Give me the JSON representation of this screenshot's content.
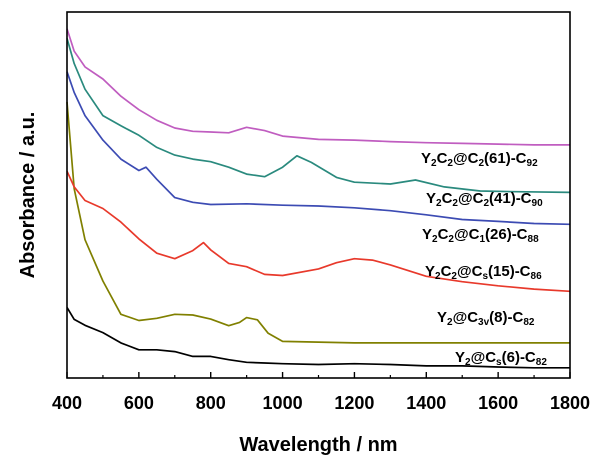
{
  "chart_data": {
    "type": "line",
    "xlabel": "Wavelength / nm",
    "ylabel": "Absorbance / a.u.",
    "xlim": [
      400,
      1800
    ],
    "ylim": [
      0,
      10
    ],
    "x_ticks": [
      "400",
      "600",
      "800",
      "1000",
      "1200",
      "1400",
      "1600",
      "1800"
    ],
    "y_ticks_labeled": false,
    "grid": false,
    "legend": "labels placed at right end of each curve",
    "series": [
      {
        "name": "Y2@Cs(6)-C82",
        "label_parts": [
          [
            "Y",
            ""
          ],
          [
            "2",
            "sub"
          ],
          [
            "@C",
            ""
          ],
          [
            "s",
            "sub"
          ],
          [
            "(6)-C",
            ""
          ],
          [
            "82",
            "sub"
          ]
        ],
        "color": "#000000",
        "points": [
          [
            400,
            1.93
          ],
          [
            420,
            1.6
          ],
          [
            450,
            1.44
          ],
          [
            500,
            1.24
          ],
          [
            550,
            0.96
          ],
          [
            600,
            0.77
          ],
          [
            650,
            0.77
          ],
          [
            700,
            0.72
          ],
          [
            750,
            0.59
          ],
          [
            800,
            0.59
          ],
          [
            850,
            0.5
          ],
          [
            900,
            0.43
          ],
          [
            950,
            0.41
          ],
          [
            1000,
            0.39
          ],
          [
            1100,
            0.37
          ],
          [
            1200,
            0.39
          ],
          [
            1300,
            0.37
          ],
          [
            1400,
            0.33
          ],
          [
            1500,
            0.33
          ],
          [
            1600,
            0.3
          ],
          [
            1700,
            0.28
          ],
          [
            1800,
            0.28
          ]
        ]
      },
      {
        "name": "Y2@C3v(8)-C82",
        "label_parts": [
          [
            "Y",
            ""
          ],
          [
            "2",
            "sub"
          ],
          [
            "@C",
            ""
          ],
          [
            "3v",
            "sub"
          ],
          [
            "(8)-C",
            ""
          ],
          [
            "82",
            "sub"
          ]
        ],
        "color": "#808000",
        "points": [
          [
            400,
            7.54
          ],
          [
            420,
            5.17
          ],
          [
            450,
            3.78
          ],
          [
            500,
            2.65
          ],
          [
            550,
            1.74
          ],
          [
            600,
            1.57
          ],
          [
            650,
            1.63
          ],
          [
            700,
            1.74
          ],
          [
            750,
            1.72
          ],
          [
            800,
            1.61
          ],
          [
            850,
            1.43
          ],
          [
            880,
            1.52
          ],
          [
            900,
            1.65
          ],
          [
            930,
            1.59
          ],
          [
            960,
            1.22
          ],
          [
            1000,
            1.0
          ],
          [
            1100,
            0.98
          ],
          [
            1200,
            0.96
          ],
          [
            1400,
            0.96
          ],
          [
            1600,
            0.96
          ],
          [
            1800,
            0.96
          ]
        ]
      },
      {
        "name": "Y2C2@Cs(15)-C86",
        "label_parts": [
          [
            "Y",
            ""
          ],
          [
            "2",
            "sub"
          ],
          [
            "C",
            ""
          ],
          [
            "2",
            "sub"
          ],
          [
            "@C",
            ""
          ],
          [
            "s",
            "sub"
          ],
          [
            "(15)-C",
            ""
          ],
          [
            "86",
            "sub"
          ]
        ],
        "color": "#e8392b",
        "points": [
          [
            400,
            5.65
          ],
          [
            420,
            5.22
          ],
          [
            450,
            4.85
          ],
          [
            500,
            4.63
          ],
          [
            550,
            4.26
          ],
          [
            600,
            3.8
          ],
          [
            650,
            3.41
          ],
          [
            700,
            3.26
          ],
          [
            750,
            3.48
          ],
          [
            780,
            3.7
          ],
          [
            800,
            3.5
          ],
          [
            850,
            3.13
          ],
          [
            900,
            3.04
          ],
          [
            950,
            2.83
          ],
          [
            1000,
            2.8
          ],
          [
            1100,
            2.98
          ],
          [
            1150,
            3.15
          ],
          [
            1200,
            3.26
          ],
          [
            1250,
            3.22
          ],
          [
            1300,
            3.09
          ],
          [
            1400,
            2.78
          ],
          [
            1500,
            2.63
          ],
          [
            1600,
            2.52
          ],
          [
            1700,
            2.43
          ],
          [
            1800,
            2.37
          ]
        ]
      },
      {
        "name": "Y2C2@C1(26)-C88",
        "label_parts": [
          [
            "Y",
            ""
          ],
          [
            "2",
            "sub"
          ],
          [
            "C",
            ""
          ],
          [
            "2",
            "sub"
          ],
          [
            "@C",
            ""
          ],
          [
            "1",
            "sub"
          ],
          [
            "(26)-C",
            ""
          ],
          [
            "88",
            "sub"
          ]
        ],
        "color": "#3c4bb3",
        "points": [
          [
            400,
            8.37
          ],
          [
            420,
            7.8
          ],
          [
            450,
            7.17
          ],
          [
            500,
            6.5
          ],
          [
            550,
            5.98
          ],
          [
            600,
            5.67
          ],
          [
            620,
            5.76
          ],
          [
            650,
            5.43
          ],
          [
            700,
            4.93
          ],
          [
            750,
            4.8
          ],
          [
            800,
            4.74
          ],
          [
            900,
            4.76
          ],
          [
            1000,
            4.72
          ],
          [
            1100,
            4.7
          ],
          [
            1200,
            4.65
          ],
          [
            1300,
            4.57
          ],
          [
            1400,
            4.46
          ],
          [
            1500,
            4.33
          ],
          [
            1600,
            4.28
          ],
          [
            1700,
            4.22
          ],
          [
            1800,
            4.2
          ]
        ]
      },
      {
        "name": "Y2C2@C2(41)-C90",
        "label_parts": [
          [
            "Y",
            ""
          ],
          [
            "2",
            "sub"
          ],
          [
            "C",
            ""
          ],
          [
            "2",
            "sub"
          ],
          [
            "@C",
            ""
          ],
          [
            "2",
            "sub"
          ],
          [
            "(41)-C",
            ""
          ],
          [
            "90",
            "sub"
          ]
        ],
        "color": "#2a8a7e",
        "points": [
          [
            400,
            9.28
          ],
          [
            420,
            8.59
          ],
          [
            450,
            7.89
          ],
          [
            500,
            7.17
          ],
          [
            550,
            6.89
          ],
          [
            600,
            6.63
          ],
          [
            650,
            6.3
          ],
          [
            700,
            6.09
          ],
          [
            750,
            5.98
          ],
          [
            800,
            5.91
          ],
          [
            850,
            5.76
          ],
          [
            900,
            5.57
          ],
          [
            950,
            5.5
          ],
          [
            1000,
            5.76
          ],
          [
            1040,
            6.07
          ],
          [
            1080,
            5.89
          ],
          [
            1150,
            5.48
          ],
          [
            1200,
            5.35
          ],
          [
            1300,
            5.3
          ],
          [
            1370,
            5.41
          ],
          [
            1450,
            5.22
          ],
          [
            1550,
            5.11
          ],
          [
            1650,
            5.09
          ],
          [
            1800,
            5.07
          ]
        ]
      },
      {
        "name": "Y2C2@C2(61)-C92",
        "label_parts": [
          [
            "Y",
            ""
          ],
          [
            "2",
            "sub"
          ],
          [
            "C",
            ""
          ],
          [
            "2",
            "sub"
          ],
          [
            "@C",
            ""
          ],
          [
            "2",
            "sub"
          ],
          [
            "(61)-C",
            ""
          ],
          [
            "92",
            "sub"
          ]
        ],
        "color": "#c05dc0",
        "points": [
          [
            400,
            9.54
          ],
          [
            420,
            8.93
          ],
          [
            450,
            8.5
          ],
          [
            500,
            8.17
          ],
          [
            550,
            7.7
          ],
          [
            600,
            7.33
          ],
          [
            650,
            7.04
          ],
          [
            700,
            6.83
          ],
          [
            750,
            6.74
          ],
          [
            800,
            6.72
          ],
          [
            850,
            6.7
          ],
          [
            900,
            6.85
          ],
          [
            950,
            6.76
          ],
          [
            1000,
            6.61
          ],
          [
            1100,
            6.52
          ],
          [
            1200,
            6.5
          ],
          [
            1300,
            6.46
          ],
          [
            1400,
            6.43
          ],
          [
            1500,
            6.41
          ],
          [
            1600,
            6.39
          ],
          [
            1700,
            6.37
          ],
          [
            1800,
            6.37
          ]
        ]
      }
    ]
  }
}
